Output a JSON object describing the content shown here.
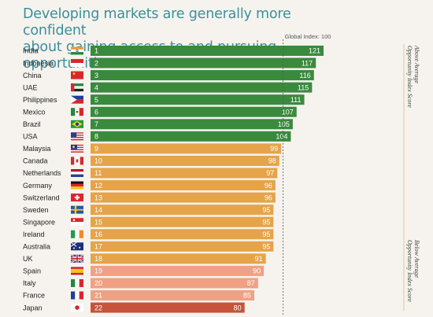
{
  "title_lines": [
    "Developing markets are generally more confident",
    "about gaining access to and pursuing opportunities"
  ],
  "global_index_label": "Global Index: 100",
  "side_labels": {
    "above": [
      "Above Average",
      "Opportunity Index Score"
    ],
    "below": [
      "Below Average",
      "Opportunity Index Score"
    ]
  },
  "colors": {
    "above": "#3a8a3e",
    "average": "#e5a44a",
    "below_light": "#f0a184",
    "below_dark": "#c6533a",
    "title": "#3c8f9b",
    "background": "#f6f3ee"
  },
  "chart_data": {
    "type": "bar",
    "orientation": "horizontal",
    "reference_line": 100,
    "categories": [
      "India",
      "Indonesia",
      "China",
      "UAE",
      "Philippines",
      "Mexico",
      "Brazil",
      "USA",
      "Malaysia",
      "Canada",
      "Netherlands",
      "Germany",
      "Switzerland",
      "Sweden",
      "Singapore",
      "Ireland",
      "Australia",
      "UK",
      "Spain",
      "Italy",
      "France",
      "Japan"
    ],
    "ranks": [
      1,
      2,
      3,
      4,
      5,
      6,
      7,
      8,
      9,
      10,
      11,
      12,
      13,
      14,
      15,
      16,
      17,
      18,
      19,
      20,
      21,
      22
    ],
    "values": [
      121,
      117,
      116,
      115,
      111,
      107,
      105,
      104,
      99,
      98,
      97,
      96,
      96,
      95,
      95,
      95,
      95,
      91,
      90,
      87,
      85,
      80
    ],
    "groups": [
      "above",
      "above",
      "above",
      "above",
      "above",
      "above",
      "above",
      "above",
      "average",
      "average",
      "average",
      "average",
      "average",
      "average",
      "average",
      "average",
      "average",
      "average",
      "below_light",
      "below_light",
      "below_light",
      "below_dark"
    ],
    "flags": [
      "india-flag",
      "indonesia-flag",
      "china-flag",
      "uae-flag",
      "philippines-flag",
      "mexico-flag",
      "brazil-flag",
      "usa-flag",
      "malaysia-flag",
      "canada-flag",
      "netherlands-flag",
      "germany-flag",
      "switzerland-flag",
      "sweden-flag",
      "singapore-flag",
      "ireland-flag",
      "australia-flag",
      "uk-flag",
      "spain-flag",
      "italy-flag",
      "france-flag",
      "japan-flag"
    ]
  }
}
